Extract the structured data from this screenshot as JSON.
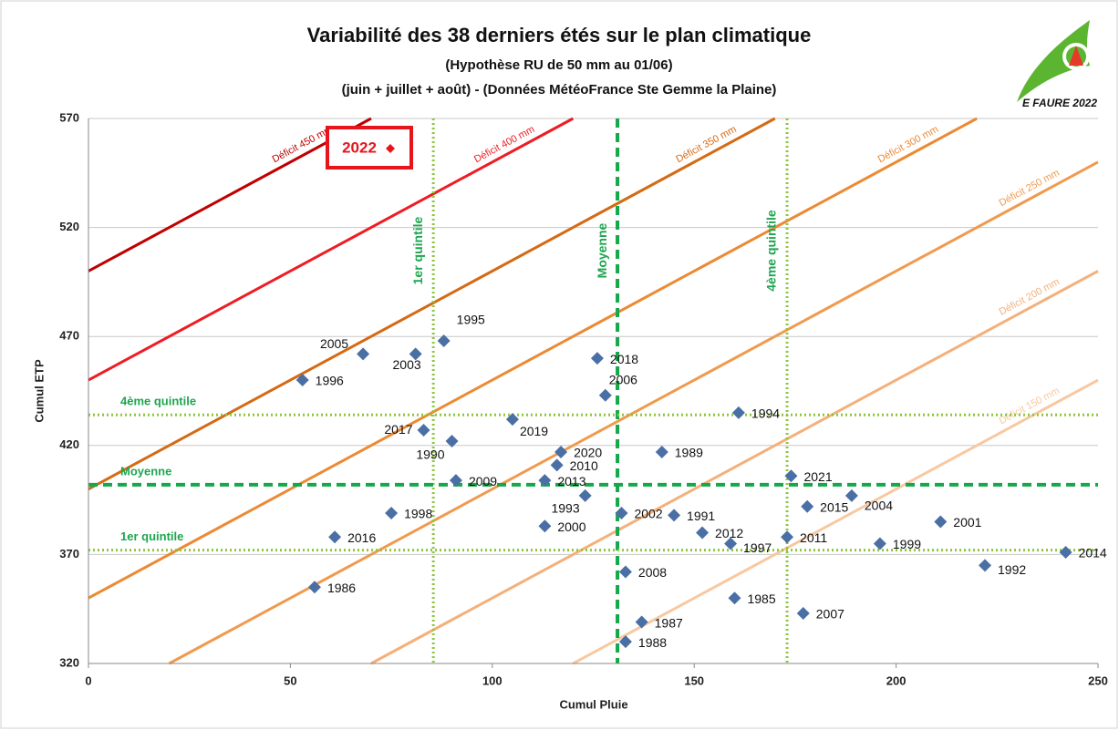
{
  "chart_data": {
    "type": "scatter",
    "title": "Variabilité des 38 derniers étés sur le plan climatique",
    "subtitle": [
      "(Hypothèse RU de 50 mm au 01/06)",
      "(juin + juillet + août) - (Données MétéoFrance Ste Gemme la Plaine)"
    ],
    "author": "E FAURE 2022",
    "x_label": "Cumul Pluie",
    "y_label": "Cumul ETP",
    "xlim": [
      0,
      250
    ],
    "ylim": [
      320,
      570
    ],
    "xticks": [
      0,
      50,
      100,
      150,
      200,
      250
    ],
    "yticks": [
      320,
      370,
      420,
      470,
      520,
      570
    ],
    "grid": true,
    "color": "#4a6fa5",
    "labels": [
      "1996",
      "2005",
      "2003",
      "1995",
      "2018",
      "2006",
      "1994",
      "2017",
      "2019",
      "1990",
      "2020",
      "1989",
      "2010",
      "2009",
      "2013",
      "2021",
      "1993",
      "2004",
      "2015",
      "1998",
      "2002",
      "1991",
      "2000",
      "2001",
      "2012",
      "2016",
      "2011",
      "1997",
      "1999",
      "2014",
      "1992",
      "2008",
      "1986",
      "1985",
      "2007",
      "1987",
      "1988"
    ],
    "x": [
      53,
      68,
      81,
      88,
      126,
      128,
      161,
      83,
      105,
      90,
      117,
      142,
      116,
      91,
      113,
      174,
      123,
      189,
      178,
      75,
      132,
      145,
      113,
      211,
      152,
      61,
      173,
      159,
      196,
      242,
      222,
      133,
      56,
      160,
      177,
      137,
      133
    ],
    "values": [
      450,
      462,
      462,
      468,
      460,
      443,
      435,
      427,
      432,
      422,
      417,
      417,
      411,
      404,
      404,
      406,
      397,
      397,
      392,
      389,
      389,
      388,
      383,
      385,
      380,
      378,
      378,
      375,
      375,
      371,
      365,
      362,
      355,
      350,
      343,
      339,
      330
    ],
    "reserve": 50,
    "deficit_lines": [
      {
        "label": "Déficit 450 mm",
        "value": 450,
        "color": "#c00000"
      },
      {
        "label": "Déficit 400 mm",
        "value": 400,
        "color": "#ee1c24"
      },
      {
        "label": "Déficit 350 mm",
        "value": 350,
        "color": "#d46a14"
      },
      {
        "label": "Déficit 300 mm",
        "value": 300,
        "color": "#ec8a34"
      },
      {
        "label": "Déficit 250 mm",
        "value": 250,
        "color": "#f09a4e"
      },
      {
        "label": "Déficit 200 mm",
        "value": 200,
        "color": "#f4b07a"
      },
      {
        "label": "Déficit 150 mm",
        "value": 150,
        "color": "#f8c8a0"
      }
    ],
    "reference_x": [
      {
        "label": "1er quintile",
        "value": 85.4,
        "style": "dotted"
      },
      {
        "label": "Moyenne",
        "value": 131,
        "style": "dashed"
      },
      {
        "label": "4ème quintile",
        "value": 173,
        "style": "dotted"
      }
    ],
    "reference_y": [
      {
        "label": "4ème quintile",
        "value": 434,
        "style": "dotted"
      },
      {
        "label": "Moyenne",
        "value": 402,
        "style": "dashed"
      },
      {
        "label": "1er quintile",
        "value": 372,
        "style": "dotted"
      }
    ],
    "annotation": "2022"
  }
}
